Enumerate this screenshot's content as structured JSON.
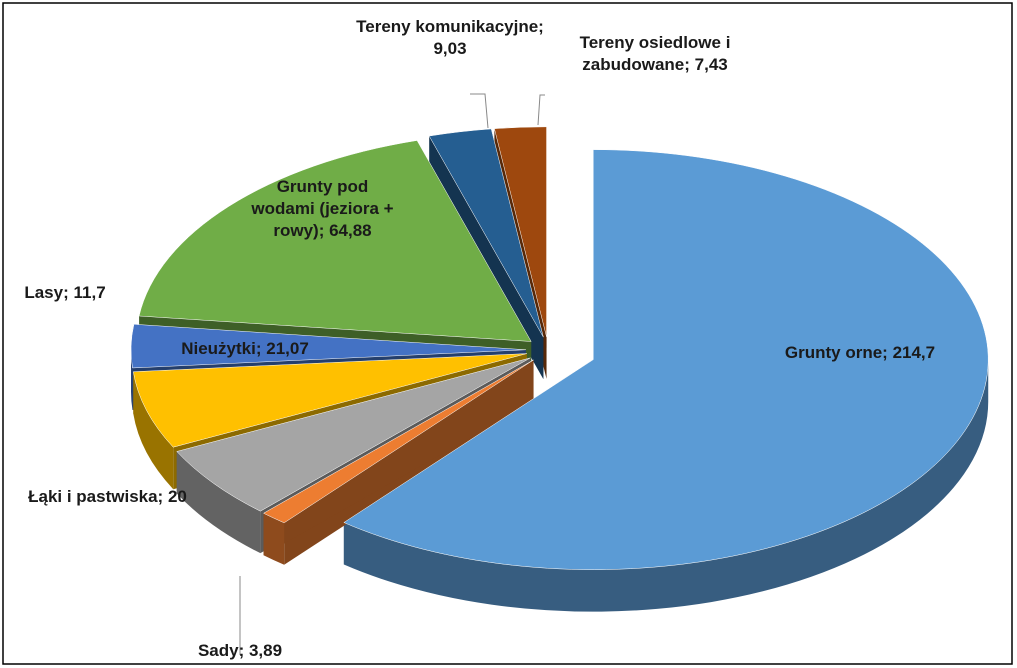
{
  "chart_data": {
    "type": "pie3d",
    "categories": [
      "Grunty orne;",
      "Sady;",
      "Łąki i pastwiska;",
      "Nieużytki;",
      "Lasy;",
      "Grunty pod wodami (jeziora + rowy);",
      "Tereny komunikacyjne;",
      "Tereny osiedlowe i zabudowane;"
    ],
    "values": [
      214.7,
      3.89,
      20,
      21.07,
      11.7,
      64.88,
      9.03,
      7.43
    ],
    "value_labels": [
      "214,7",
      "3,89",
      "20",
      "21,07",
      "11,7",
      "64,88",
      "9,03",
      "7,43"
    ],
    "colors": [
      "#5b9bd5",
      "#ed7d31",
      "#a5a5a5",
      "#ffc000",
      "#4472c4",
      "#70ad47",
      "#255e91",
      "#9e480e"
    ]
  }
}
